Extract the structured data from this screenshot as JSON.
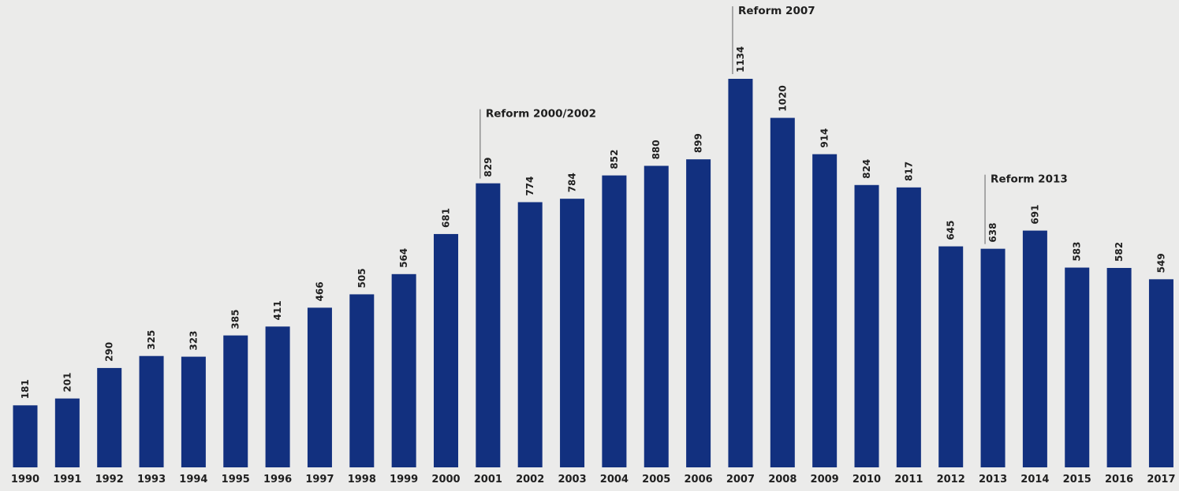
{
  "chart_data": {
    "type": "bar",
    "title": "",
    "xlabel": "",
    "ylabel": "",
    "ylim": [
      0,
      1134
    ],
    "grid": false,
    "categories": [
      "1990",
      "1991",
      "1992",
      "1993",
      "1994",
      "1995",
      "1996",
      "1997",
      "1998",
      "1999",
      "2000",
      "2001",
      "2002",
      "2003",
      "2004",
      "2005",
      "2006",
      "2007",
      "2008",
      "2009",
      "2010",
      "2011",
      "2012",
      "2013",
      "2014",
      "2015",
      "2016",
      "2017"
    ],
    "values": [
      181,
      201,
      290,
      325,
      323,
      385,
      411,
      466,
      505,
      564,
      681,
      829,
      774,
      784,
      852,
      880,
      899,
      1134,
      1020,
      914,
      824,
      817,
      645,
      638,
      691,
      583,
      582,
      549
    ],
    "value_labels": [
      "181",
      "201",
      "290",
      "325",
      "323",
      "385",
      "411",
      "466",
      "505",
      "564",
      "681",
      "829",
      "774",
      "784",
      "852",
      "880",
      "899",
      "1134",
      "1020",
      "914",
      "824",
      "817",
      "645",
      "638",
      "691",
      "583",
      "582",
      "549"
    ],
    "color": "#12307f",
    "annotations": [
      {
        "category": "2001",
        "text": "Reform 2000/2002"
      },
      {
        "category": "2007",
        "text": "Reform 2007"
      },
      {
        "category": "2013",
        "text": "Reform 2013"
      }
    ]
  }
}
